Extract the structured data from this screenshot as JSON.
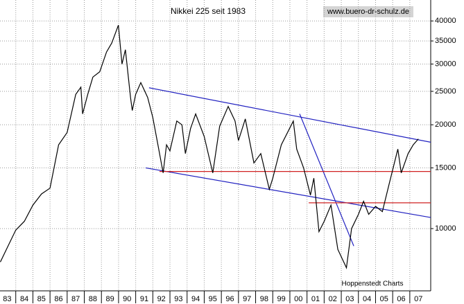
{
  "chart_data": {
    "type": "line",
    "title": "Nikkei 225 seit 1983",
    "source": "www.buero-dr-schulz.de",
    "credit": "Hoppenstedt Charts",
    "log_scale": true,
    "grid": true,
    "xlim": [
      1983.08,
      2008.22
    ],
    "ylim": [
      6600,
      46000
    ],
    "yticks": [
      10000,
      15000,
      20000,
      25000,
      30000,
      35000,
      40000
    ],
    "xticks": [
      {
        "value": 1983,
        "label": "83"
      },
      {
        "value": 1984,
        "label": "84"
      },
      {
        "value": 1985,
        "label": "85"
      },
      {
        "value": 1986,
        "label": "86"
      },
      {
        "value": 1987,
        "label": "87"
      },
      {
        "value": 1988,
        "label": "88"
      },
      {
        "value": 1989,
        "label": "89"
      },
      {
        "value": 1990,
        "label": "90"
      },
      {
        "value": 1991,
        "label": "91"
      },
      {
        "value": 1992,
        "label": "92"
      },
      {
        "value": 1993,
        "label": "93"
      },
      {
        "value": 1994,
        "label": "94"
      },
      {
        "value": 1995,
        "label": "95"
      },
      {
        "value": 1996,
        "label": "96"
      },
      {
        "value": 1997,
        "label": "97"
      },
      {
        "value": 1998,
        "label": "98"
      },
      {
        "value": 1999,
        "label": "99"
      },
      {
        "value": 2000,
        "label": "00"
      },
      {
        "value": 2001,
        "label": "01"
      },
      {
        "value": 2002,
        "label": "02"
      },
      {
        "value": 2003,
        "label": "03"
      },
      {
        "value": 2004,
        "label": "04"
      },
      {
        "value": 2005,
        "label": "05"
      },
      {
        "value": 2006,
        "label": "06"
      },
      {
        "value": 2007,
        "label": "07"
      }
    ],
    "x": [
      1983.1,
      1983.5,
      1984.0,
      1984.5,
      1985.0,
      1985.5,
      1986.0,
      1986.5,
      1987.0,
      1987.5,
      1987.8,
      1987.9,
      1988.2,
      1988.5,
      1988.9,
      1989.3,
      1989.6,
      1989.99,
      1990.2,
      1990.4,
      1990.7,
      1990.8,
      1991.0,
      1991.3,
      1991.7,
      1992.0,
      1992.3,
      1992.6,
      1992.8,
      1993.0,
      1993.4,
      1993.7,
      1993.9,
      1994.2,
      1994.5,
      1995.0,
      1995.5,
      1995.9,
      1996.4,
      1996.8,
      1997.0,
      1997.4,
      1997.9,
      1998.3,
      1998.8,
      1999.0,
      1999.5,
      2000.2,
      2000.4,
      2000.8,
      2001.2,
      2001.4,
      2001.7,
      2002.0,
      2002.4,
      2002.8,
      2003.3,
      2003.6,
      2004.0,
      2004.3,
      2004.6,
      2005.0,
      2005.4,
      2005.8,
      2006.3,
      2006.5,
      2006.9,
      2007.2,
      2007.5
    ],
    "series": [
      {
        "color": "#000000",
        "values": [
          8000,
          8800,
          9900,
          10500,
          11700,
          12600,
          13100,
          17500,
          19000,
          24500,
          25700,
          21500,
          24500,
          27500,
          28500,
          32500,
          34500,
          38900,
          30000,
          33000,
          24000,
          22000,
          24500,
          26500,
          24000,
          21000,
          17500,
          14500,
          17500,
          16800,
          20500,
          20000,
          16500,
          19500,
          21500,
          18500,
          14500,
          19800,
          22600,
          20500,
          18000,
          20800,
          15500,
          16500,
          13000,
          14000,
          17500,
          20500,
          17000,
          15000,
          12500,
          14000,
          9800,
          10500,
          11700,
          8700,
          7700,
          10000,
          11000,
          12000,
          11000,
          11600,
          11200,
          13500,
          17000,
          14500,
          16500,
          17500,
          18200
        ]
      }
    ],
    "trend_lines": [
      {
        "color": "#2020c0",
        "x": [
          1991.78,
          2008.22
        ],
        "y": [
          25600,
          17800
        ]
      },
      {
        "color": "#2020c0",
        "x": [
          1991.58,
          2008.22
        ],
        "y": [
          15000,
          10770
        ]
      },
      {
        "color": "#2020c0",
        "x": [
          2000.57,
          2003.73
        ],
        "y": [
          21500,
          8900
        ]
      },
      {
        "color": "#d02020",
        "x": [
          1992.39,
          2008.22
        ],
        "y": [
          14640,
          14640
        ]
      },
      {
        "color": "#d02020",
        "x": [
          2001.1,
          2008.22
        ],
        "y": [
          11880,
          11880
        ]
      }
    ]
  }
}
